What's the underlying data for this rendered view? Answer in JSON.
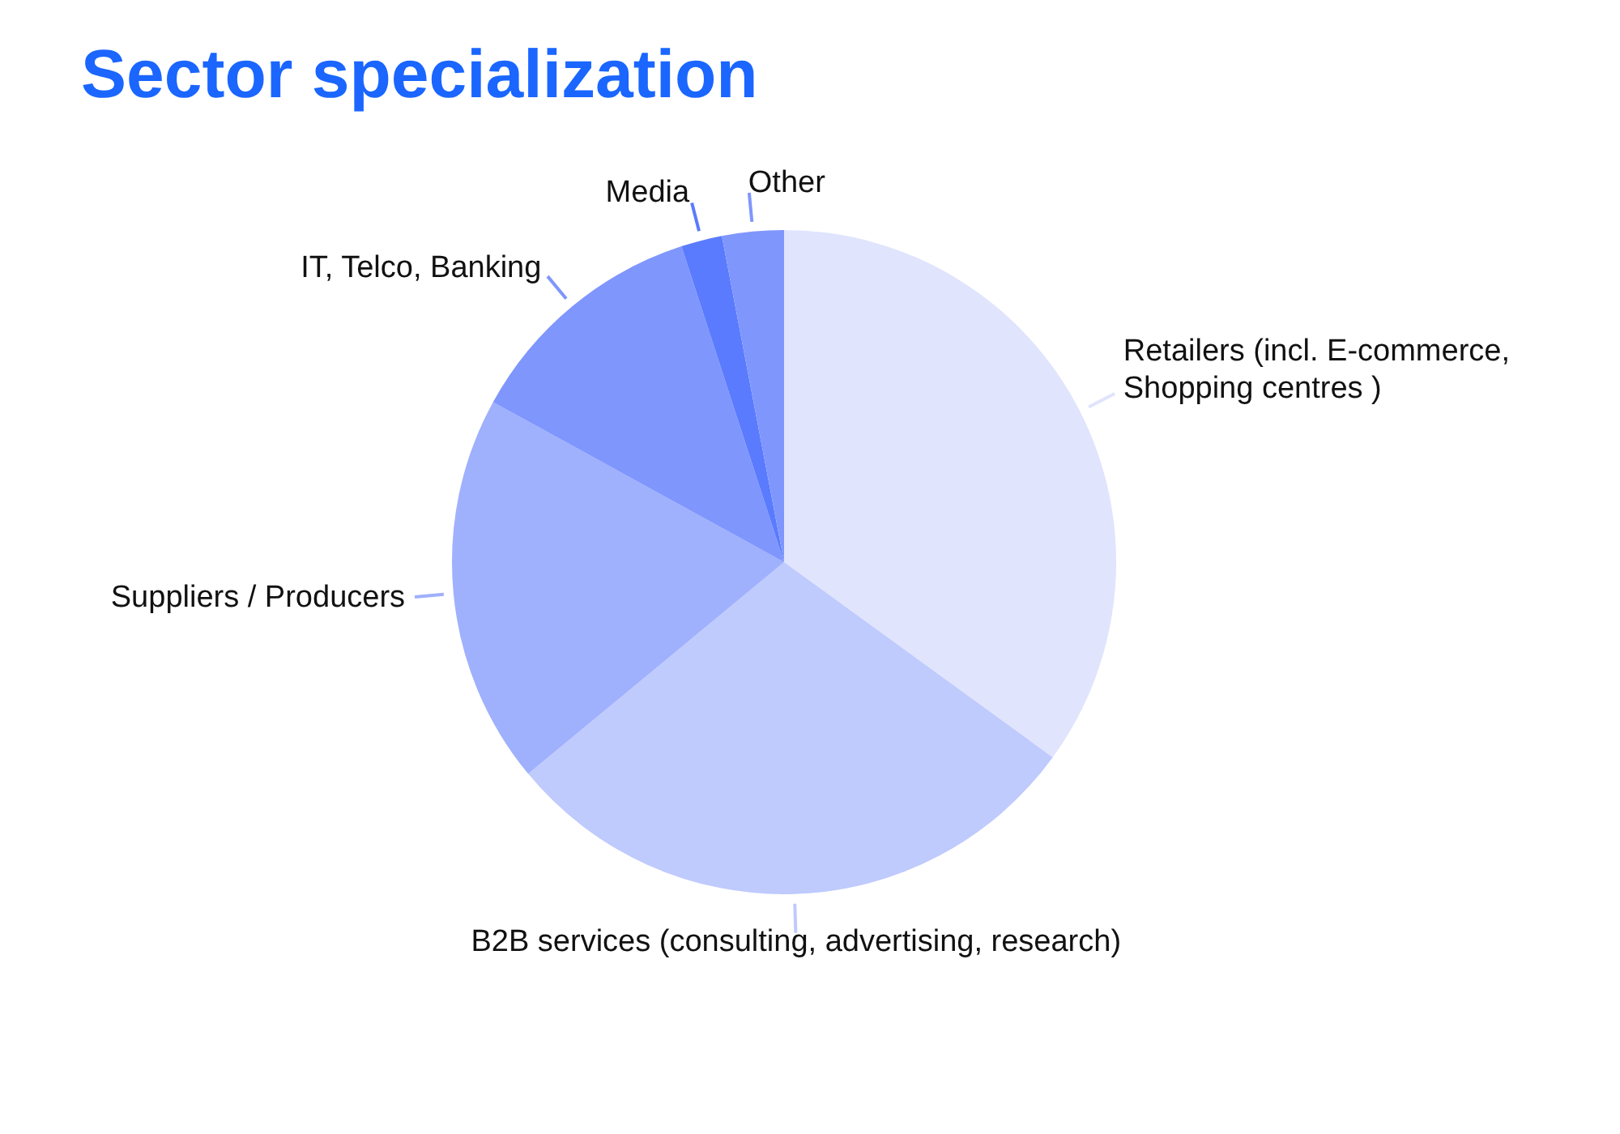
{
  "chart_data": {
    "type": "pie",
    "title": "Sector specialization",
    "categories": [
      "Retailers (incl. E-commerce, Shopping centres )",
      "B2B services (consulting, advertising, research)",
      "Suppliers / Producers",
      "IT, Telco, Banking",
      "Media",
      "Other"
    ],
    "values": [
      35,
      29,
      19,
      12,
      2,
      3
    ],
    "colors": [
      "#e0e4fd",
      "#bfcafd",
      "#9fb0fd",
      "#7f96fd",
      "#5a7bfd",
      "#7f96fd"
    ],
    "legend": false
  }
}
